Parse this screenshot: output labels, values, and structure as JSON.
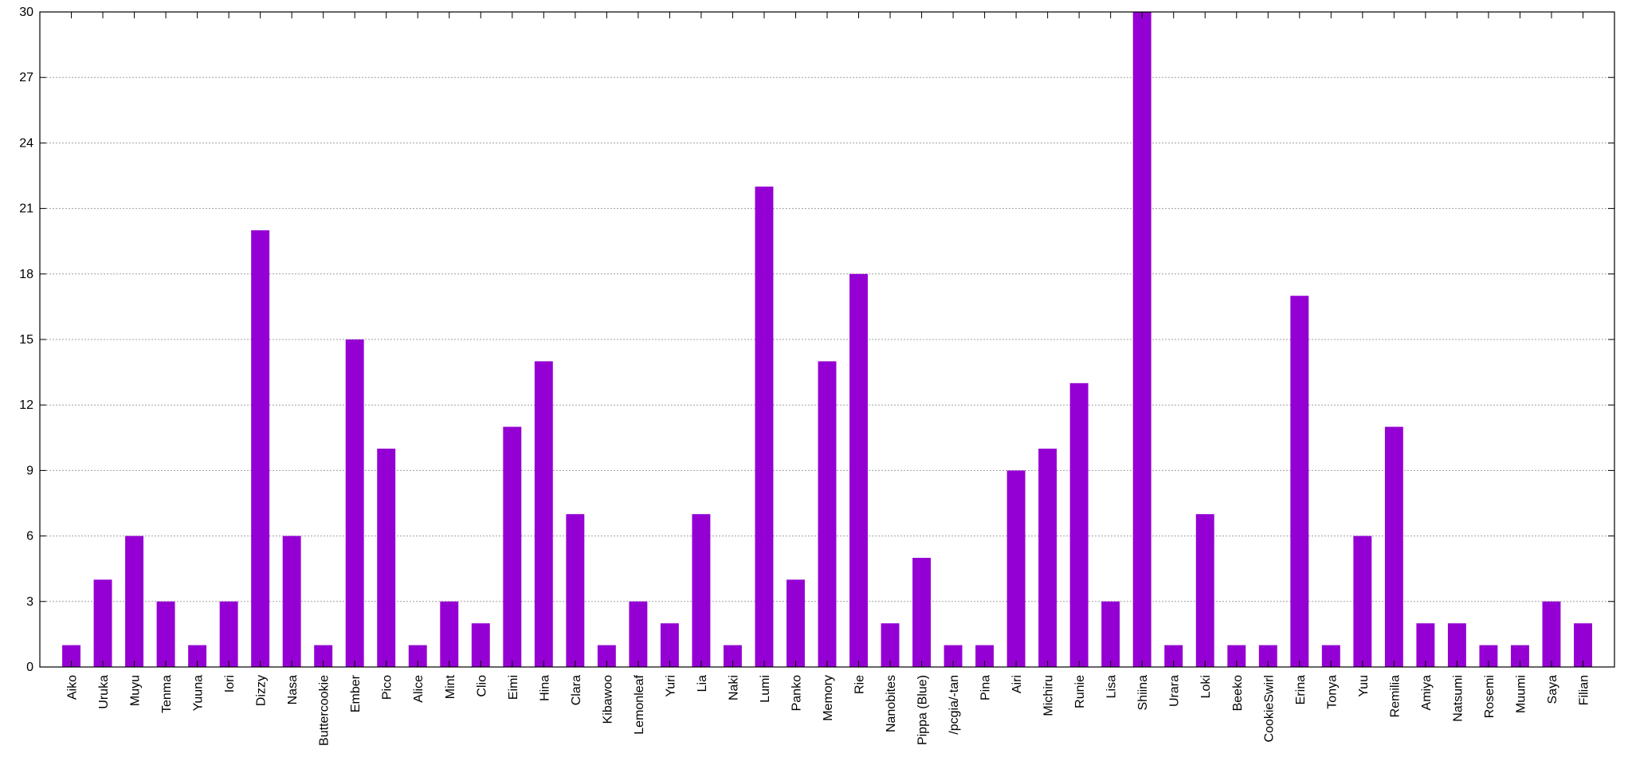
{
  "chart_data": {
    "type": "bar",
    "title": "",
    "xlabel": "",
    "ylabel": "",
    "ylim": [
      0,
      30
    ],
    "yticks": [
      0,
      3,
      6,
      9,
      12,
      15,
      18,
      21,
      24,
      27,
      30
    ],
    "ytick_labels": [
      "0",
      "3",
      "6",
      "9",
      "12",
      "15",
      "18",
      "21",
      "24",
      "27",
      "30"
    ],
    "grid": true,
    "legend": "none",
    "bar_color": "#9400d3",
    "categories": [
      "Aiko",
      "Uruka",
      "Muyu",
      "Tenma",
      "Yuuna",
      "Iori",
      "Dizzy",
      "Nasa",
      "Buttercookie",
      "Ember",
      "Pico",
      "Alice",
      "Mint",
      "Clio",
      "Eimi",
      "Hina",
      "Clara",
      "Kibawoo",
      "Lemonleaf",
      "Yuri",
      "Lia",
      "Naki",
      "Lumi",
      "Panko",
      "Memory",
      "Rie",
      "Nanobites",
      "Pippa (Blue)",
      "/pcgia/-tan",
      "Pina",
      "Airi",
      "Michiru",
      "Runie",
      "Lisa",
      "Shiina",
      "Urara",
      "Loki",
      "Beeko",
      "CookieSwirl",
      "Erina",
      "Tonya",
      "Yuu",
      "Remilia",
      "Amiya",
      "Natsumi",
      "Rosemi",
      "Muumi",
      "Saya",
      "Filian"
    ],
    "values": [
      1,
      4,
      6,
      3,
      1,
      3,
      20,
      6,
      1,
      15,
      10,
      1,
      3,
      2,
      11,
      14,
      7,
      1,
      3,
      2,
      7,
      1,
      22,
      4,
      14,
      18,
      2,
      5,
      1,
      1,
      9,
      10,
      13,
      3,
      30,
      1,
      7,
      1,
      1,
      17,
      1,
      6,
      11,
      2,
      2,
      1,
      1,
      3,
      2
    ]
  }
}
